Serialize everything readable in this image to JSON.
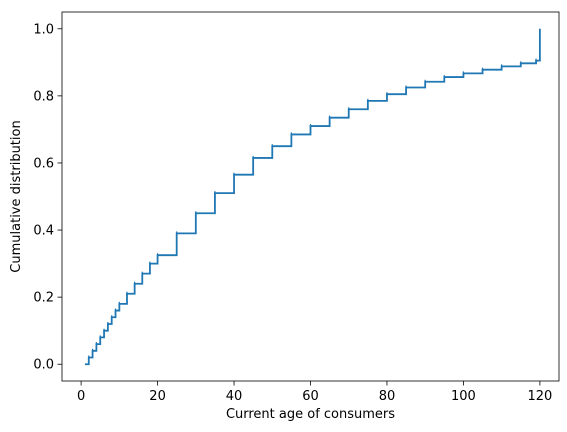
{
  "chart_data": {
    "type": "line",
    "step": true,
    "title": "",
    "xlabel": "Current age of consumers",
    "ylabel": "Cumulative distribution",
    "xlim": [
      -5,
      125
    ],
    "ylim": [
      -0.05,
      1.05
    ],
    "x_ticks": [
      0,
      20,
      40,
      60,
      80,
      100,
      120
    ],
    "x_tick_labels": [
      "0",
      "20",
      "40",
      "60",
      "80",
      "100",
      "120"
    ],
    "y_ticks": [
      0.0,
      0.2,
      0.4,
      0.6,
      0.8,
      1.0
    ],
    "y_tick_labels": [
      "0.0",
      "0.2",
      "0.4",
      "0.6",
      "0.8",
      "1.0"
    ],
    "grid": false,
    "legend": "none",
    "series": [
      {
        "color": "#1f77b4",
        "x": [
          1,
          2,
          3,
          4,
          5,
          6,
          7,
          8,
          9,
          10,
          12,
          14,
          16,
          18,
          20,
          25,
          30,
          35,
          40,
          45,
          50,
          55,
          60,
          65,
          70,
          75,
          80,
          85,
          90,
          95,
          100,
          105,
          110,
          115,
          119,
          120,
          120
        ],
        "y": [
          0.0,
          0.02,
          0.04,
          0.06,
          0.08,
          0.1,
          0.12,
          0.14,
          0.16,
          0.18,
          0.21,
          0.24,
          0.27,
          0.3,
          0.325,
          0.39,
          0.45,
          0.51,
          0.565,
          0.615,
          0.65,
          0.685,
          0.71,
          0.735,
          0.76,
          0.785,
          0.805,
          0.825,
          0.842,
          0.856,
          0.867,
          0.878,
          0.888,
          0.897,
          0.905,
          0.91,
          1.0
        ]
      }
    ]
  }
}
